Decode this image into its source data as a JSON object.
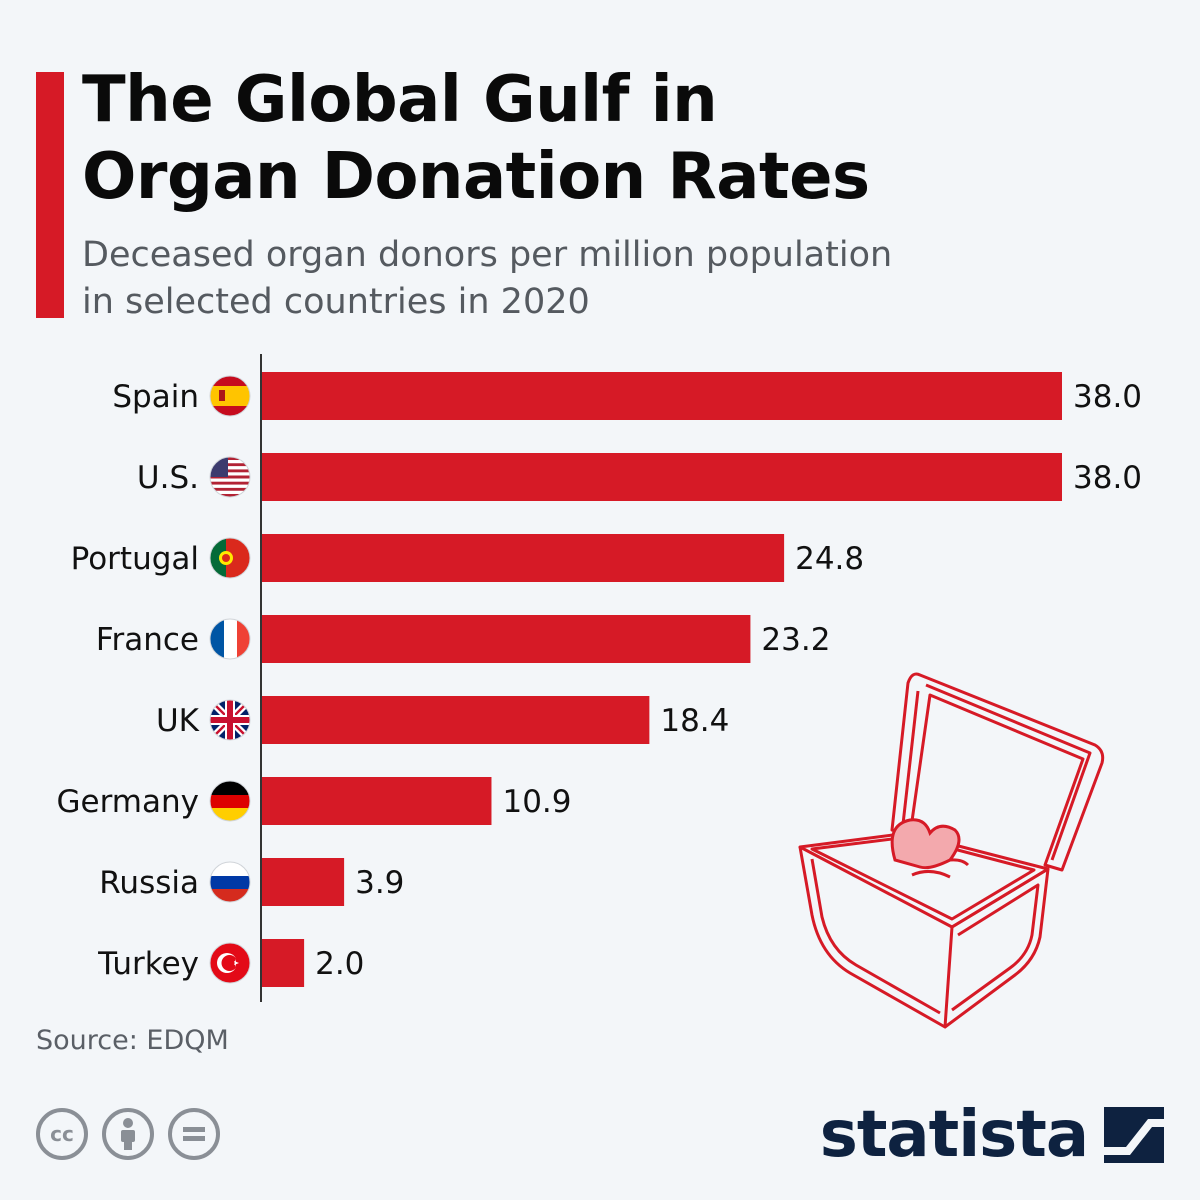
{
  "header": {
    "title_line1": "The Global Gulf in",
    "title_line2": "Organ Donation Rates",
    "subtitle_line1": "Deceased organ donors per million population",
    "subtitle_line2": "in selected countries in 2020"
  },
  "footer": {
    "source": "Source: EDQM",
    "cc_label": "cc",
    "brand": "statista"
  },
  "colors": {
    "accent": "#d61a26",
    "bar": "#d61a26",
    "text": "#111111",
    "muted": "#555a60",
    "brand": "#0e2240",
    "background": "#f3f6f9"
  },
  "icons": {
    "cc": "creative-commons-icon",
    "by": "attribution-icon",
    "nd": "no-derivatives-icon",
    "logo": "statista-logo-icon",
    "illustration": "organ-box-heart-icon"
  },
  "chart_data": {
    "type": "bar",
    "orientation": "horizontal",
    "categories": [
      "Spain",
      "U.S.",
      "Portugal",
      "France",
      "UK",
      "Germany",
      "Russia",
      "Turkey"
    ],
    "values": [
      38.0,
      38.0,
      24.8,
      23.2,
      18.4,
      10.9,
      3.9,
      2.0
    ],
    "value_labels": [
      "38.0",
      "38.0",
      "24.8",
      "23.2",
      "18.4",
      "10.9",
      "3.9",
      "2.0"
    ],
    "flags": [
      "spain-flag-icon",
      "us-flag-icon",
      "portugal-flag-icon",
      "france-flag-icon",
      "uk-flag-icon",
      "germany-flag-icon",
      "russia-flag-icon",
      "turkey-flag-icon"
    ],
    "xlim": [
      0,
      38
    ],
    "grid": false,
    "legend": "none"
  }
}
